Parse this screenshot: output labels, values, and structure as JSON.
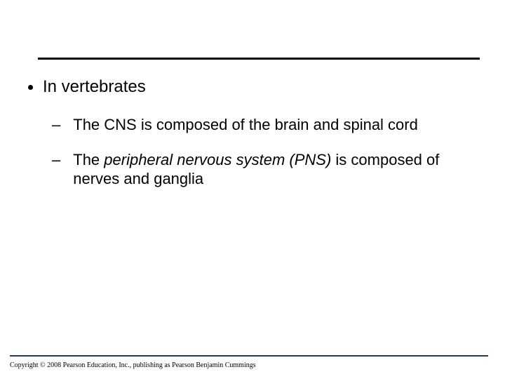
{
  "slide": {
    "rule_top_color": "#000000",
    "rule_bottom_color": "#273a64",
    "background_color": "#ffffff",
    "bullets": {
      "l1": {
        "text": "In vertebrates",
        "font_size": 24,
        "color": "#000000"
      },
      "l2a": {
        "prefix": "The CNS is composed of the brain and spinal cord",
        "font_size": 22,
        "color": "#000000"
      },
      "l2b": {
        "prefix": "The ",
        "italic": "peripheral nervous system (PNS)",
        "suffix": " is composed of nerves and ganglia",
        "font_size": 22,
        "color": "#000000"
      }
    },
    "copyright": "Copyright © 2008 Pearson Education, Inc., publishing as Pearson Benjamin Cummings"
  }
}
